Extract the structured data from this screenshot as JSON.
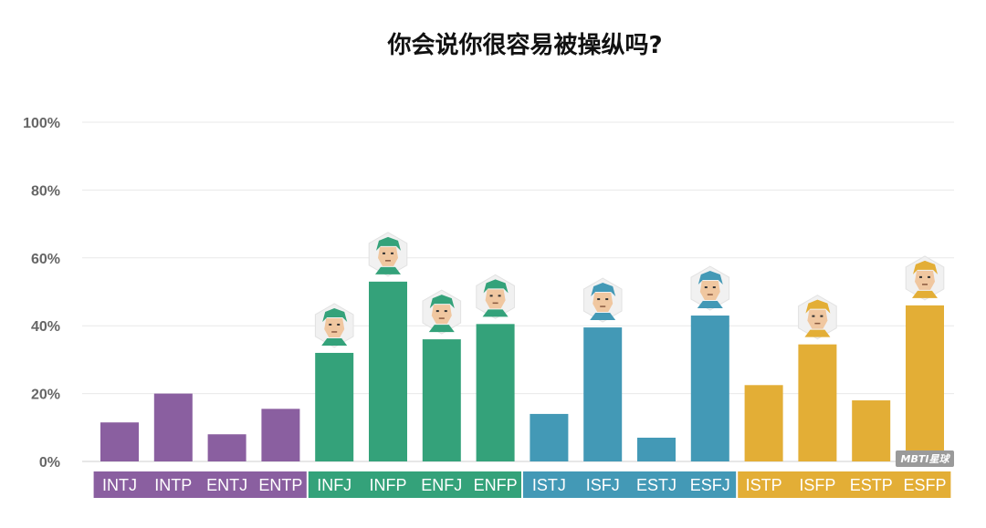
{
  "colors": {
    "NT": "#8a5fa0",
    "NF": "#34a27a",
    "SJ": "#4399b6",
    "SP": "#e3ae36"
  },
  "chart_data": {
    "type": "bar",
    "title": "你会说你很容易被操纵吗?",
    "ylim": [
      0,
      100
    ],
    "yticks": [
      "0%",
      "20%",
      "40%",
      "60%",
      "80%",
      "100%"
    ],
    "grid": true,
    "categories": [
      "INTJ",
      "INTP",
      "ENTJ",
      "ENTP",
      "INFJ",
      "INFP",
      "ENFJ",
      "ENFP",
      "ISTJ",
      "ISFJ",
      "ESTJ",
      "ESFJ",
      "ISTP",
      "ISFP",
      "ESTP",
      "ESFP"
    ],
    "values": [
      11.5,
      20,
      8,
      15.5,
      32,
      53,
      36,
      40.5,
      14,
      39.5,
      7,
      43,
      22.5,
      34.5,
      18,
      46
    ],
    "groups": [
      "NT",
      "NT",
      "NT",
      "NT",
      "NF",
      "NF",
      "NF",
      "NF",
      "SJ",
      "SJ",
      "SJ",
      "SJ",
      "SP",
      "SP",
      "SP",
      "SP"
    ],
    "avatars": [
      "",
      "",
      "",
      "",
      "avatar-icon",
      "avatar-icon",
      "avatar-icon",
      "avatar-icon",
      "",
      "avatar-icon",
      "",
      "avatar-icon",
      "",
      "avatar-icon",
      "",
      "avatar-icon"
    ]
  },
  "watermark": "MBTI星球"
}
